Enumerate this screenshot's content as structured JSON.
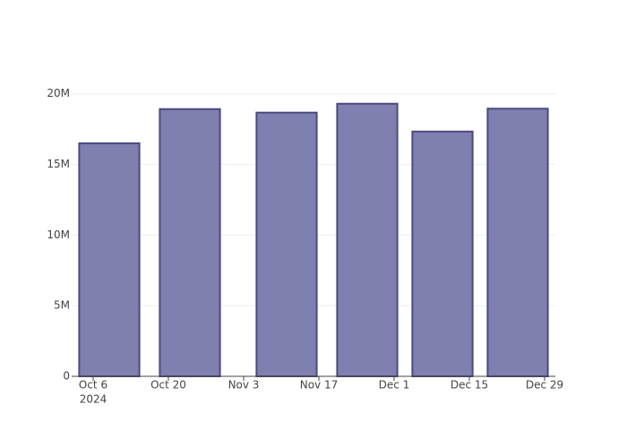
{
  "chart_data": {
    "type": "bar",
    "x": [
      "2024-10-09",
      "2024-10-24",
      "2024-11-11",
      "2024-11-26",
      "2024-12-10",
      "2024-12-24"
    ],
    "values": [
      16500000,
      18920000,
      18670000,
      19300000,
      17330000,
      18950000
    ],
    "color": "#7f7fb0",
    "line_color": "#4a4a80",
    "xlim": [
      "2024-10-02",
      "2024-12-31"
    ],
    "xticks": [
      {
        "value": "2024-10-06",
        "label": "Oct 6"
      },
      {
        "value": "2024-10-20",
        "label": "Oct 20"
      },
      {
        "value": "2024-11-03",
        "label": "Nov 3"
      },
      {
        "value": "2024-11-17",
        "label": "Nov 17"
      },
      {
        "value": "2024-12-01",
        "label": "Dec 1"
      },
      {
        "value": "2024-12-15",
        "label": "Dec 15"
      },
      {
        "value": "2024-12-29",
        "label": "Dec 29"
      }
    ],
    "x_year_label": "2024",
    "ylim": [
      0,
      20300000
    ],
    "yticks": [
      0,
      {
        "value": 5000000,
        "label": "5M"
      },
      {
        "value": 10000000,
        "label": "10M"
      },
      {
        "value": 15000000,
        "label": "15M"
      },
      {
        "value": 20000000,
        "label": "20M"
      }
    ],
    "grid": true
  }
}
